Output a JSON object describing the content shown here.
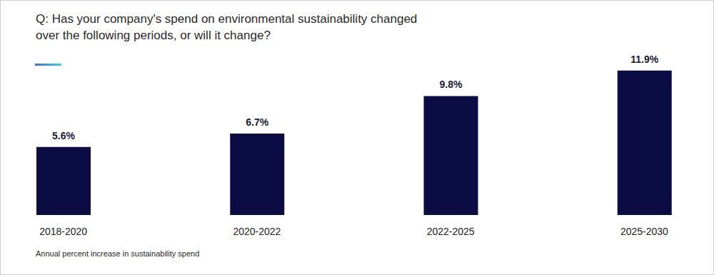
{
  "chart_data": {
    "type": "bar",
    "title": "Q: Has your company's spend on environmental sustainability changed over the following periods, or will it change?",
    "categories": [
      "2018-2020",
      "2020-2022",
      "2022-2025",
      "2025-2030"
    ],
    "values": [
      5.6,
      6.7,
      9.8,
      11.9
    ],
    "value_labels": [
      "5.6%",
      "6.7%",
      "9.8%",
      "11.9%"
    ],
    "data_labels": true,
    "color": "#0c0c45",
    "ylim": [
      0,
      12
    ],
    "tick_labels": "x",
    "grid": false,
    "annotation": "Annual percent increase in sustainability spend"
  }
}
